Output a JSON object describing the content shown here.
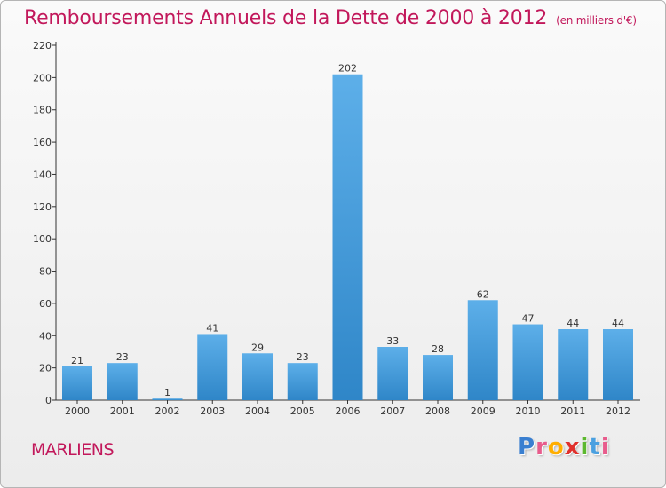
{
  "header": {
    "title": "Remboursements Annuels de la Dette de 2000 à 2012",
    "subtitle": "(en milliers d'€)"
  },
  "commune": "MARLIENS",
  "logo": {
    "text": "Proxiti",
    "letter_colors": [
      "#3a7fd0",
      "#e85c8c",
      "#ffae00",
      "#e0302c",
      "#5cb82e",
      "#4aa0e0",
      "#e85c8c"
    ]
  },
  "colors": {
    "title": "#c2185b",
    "bar_top": "#5dafe9",
    "bar_bottom": "#2f86c8",
    "axis": "#333333",
    "grid_tick": "#555555"
  },
  "chart_data": {
    "type": "bar",
    "title": "Remboursements Annuels de la Dette de 2000 à 2012",
    "subtitle": "(en milliers d'€)",
    "categories": [
      "2000",
      "2001",
      "2002",
      "2003",
      "2004",
      "2005",
      "2006",
      "2007",
      "2008",
      "2009",
      "2010",
      "2011",
      "2012"
    ],
    "values": [
      21,
      23,
      1,
      41,
      29,
      23,
      202,
      33,
      28,
      62,
      47,
      44,
      44
    ],
    "xlabel": "",
    "ylabel": "",
    "ylim": [
      0,
      220
    ],
    "yticks": [
      0,
      20,
      40,
      60,
      80,
      100,
      120,
      140,
      160,
      180,
      200,
      220
    ],
    "grid": false,
    "legend": "none"
  }
}
